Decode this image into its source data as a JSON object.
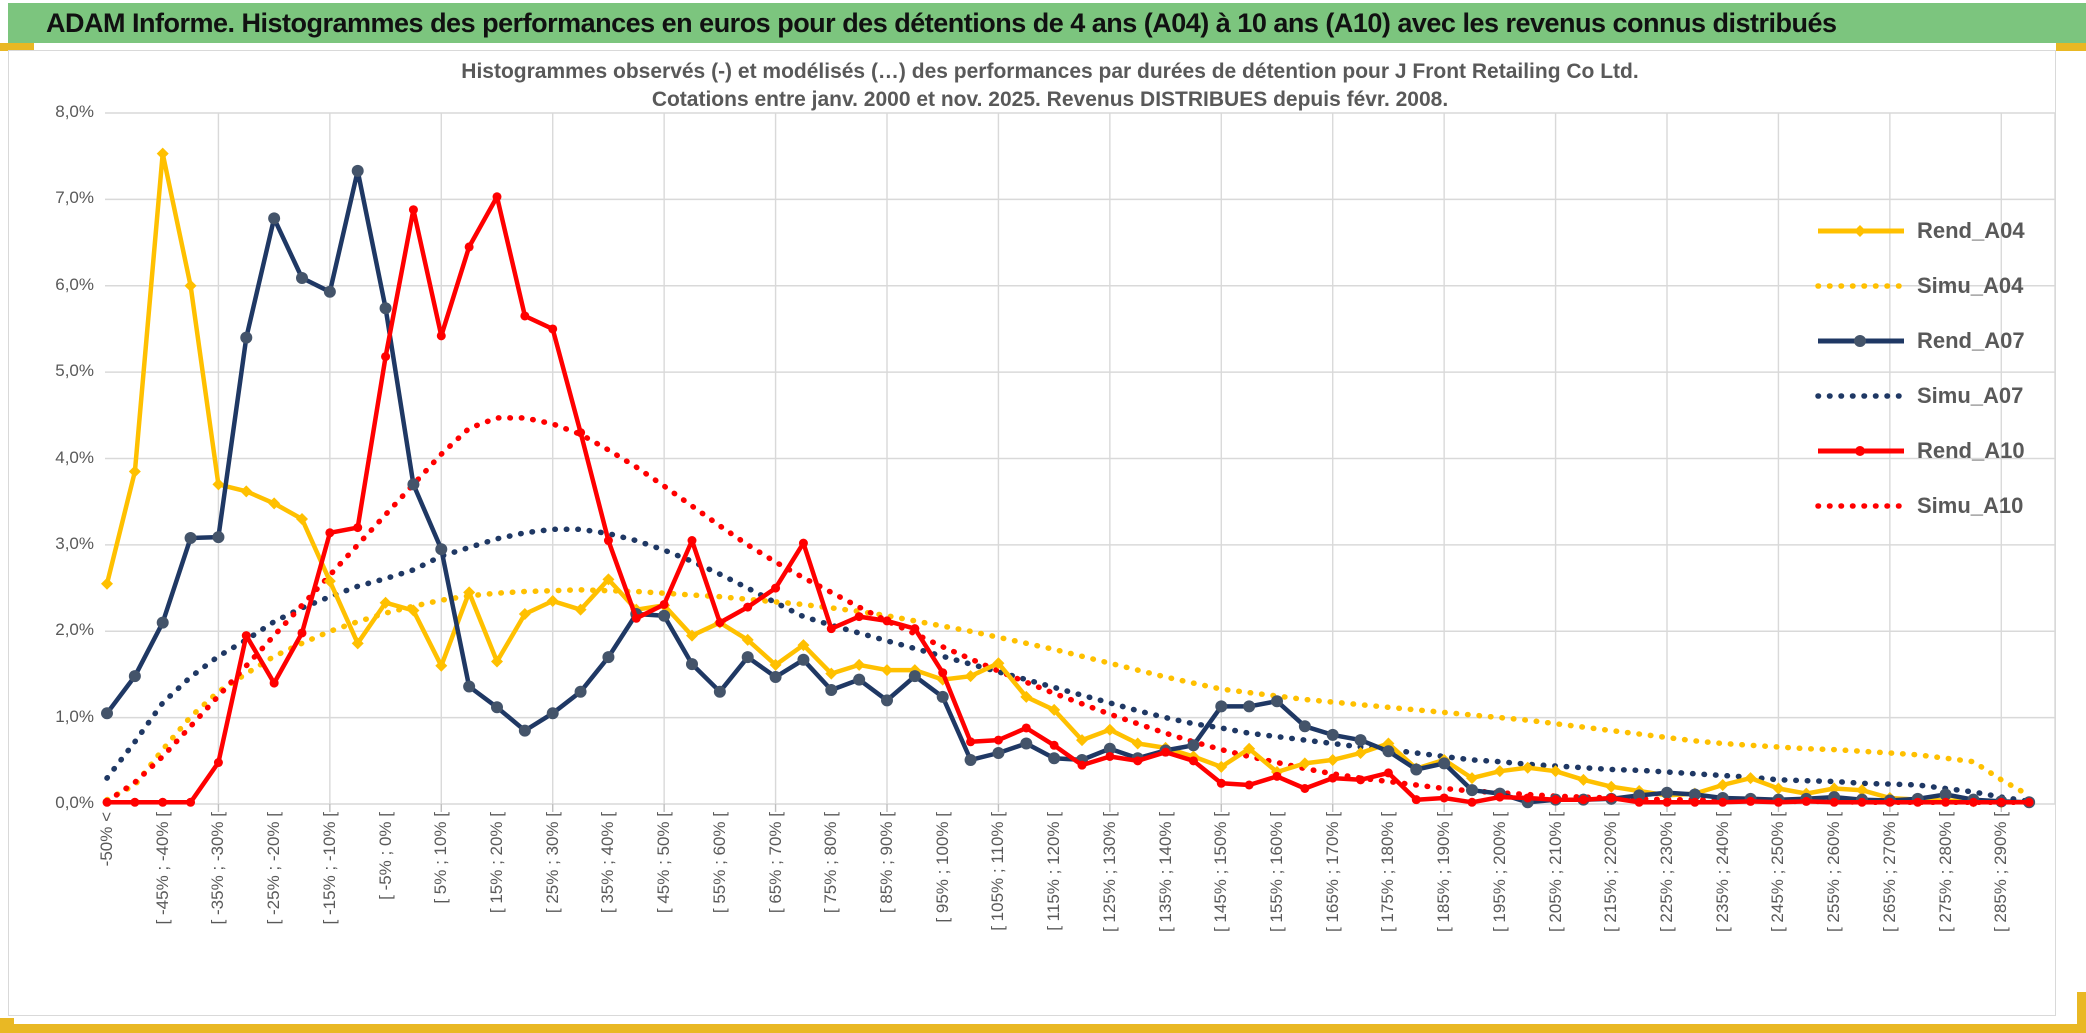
{
  "banner": {
    "title": "ADAM Informe. Histogrammes des performances en euros pour des détentions de 4 ans (A04) à 10 ans (A10) avec les revenus connus distribués",
    "background_color": "#7CC57E",
    "accent_color": "#E9B824"
  },
  "chart_data": {
    "type": "line",
    "title": "Histogrammes observés (-) et modélisés (…) des performances par durées de détention pour J Front Retailing Co Ltd.",
    "subtitle": "Cotations entre janv. 2000 et nov. 2025. Revenus DISTRIBUES depuis févr. 2008.",
    "ylim": [
      0,
      8
    ],
    "grid": true,
    "legend_position": "right",
    "y_tick_labels": [
      "0,0%",
      "1,0%",
      "2,0%",
      "3,0%",
      "4,0%",
      "5,0%",
      "6,0%",
      "7,0%",
      "8,0%"
    ],
    "x_tick_labels": [
      "-50% <",
      "[ -45% ; -40% [",
      "[ -35% ; -30% [",
      "[ -25% ; -20% [",
      "[ -15% ; -10% [",
      "[ -5% ; 0% [",
      "[ 5% ; 10% [",
      "[ 15% ; 20% [",
      "[ 25% ; 30% [",
      "[ 35% ; 40% [",
      "[ 45% ; 50% [",
      "[ 55% ; 60% [",
      "[ 65% ; 70% [",
      "[ 75% ; 80% [",
      "[ 85% ; 90% [",
      "[ 95% ; 100% [",
      "[ 105% ; 110% [",
      "[ 115% ; 120% [",
      "[ 125% ; 130% [",
      "[ 135% ; 140% [",
      "[ 145% ; 150% [",
      "[ 155% ; 160% [",
      "[ 165% ; 170% [",
      "[ 175% ; 180% [",
      "[ 185% ; 190% [",
      "[ 195% ; 200% [",
      "[ 205% ; 210% [",
      "[ 215% ; 220% [",
      "[ 225% ; 230% [",
      "[ 235% ; 240% [",
      "[ 245% ; 250% [",
      "[ 255% ; 260% [",
      "[ 265% ; 270% [",
      "[ 275% ; 280% [",
      "[ 285% ; 290% ["
    ],
    "x_labels_every_n_categories": 2,
    "n_categories": 70,
    "series": [
      {
        "name": "Simu_A04",
        "color": "#FFC000",
        "style": "dotted",
        "marker": "none",
        "values": [
          0.05,
          0.22,
          0.63,
          1.01,
          1.3,
          1.51,
          1.71,
          1.86,
          2.0,
          2.11,
          2.21,
          2.29,
          2.36,
          2.41,
          2.44,
          2.46,
          2.47,
          2.48,
          2.47,
          2.46,
          2.44,
          2.42,
          2.4,
          2.37,
          2.34,
          2.31,
          2.27,
          2.23,
          2.18,
          2.12,
          2.06,
          2.0,
          1.93,
          1.86,
          1.79,
          1.71,
          1.63,
          1.55,
          1.47,
          1.4,
          1.33,
          1.29,
          1.25,
          1.21,
          1.18,
          1.15,
          1.12,
          1.09,
          1.06,
          1.03,
          1.0,
          0.97,
          0.93,
          0.89,
          0.85,
          0.81,
          0.77,
          0.73,
          0.7,
          0.68,
          0.66,
          0.64,
          0.63,
          0.61,
          0.59,
          0.57,
          0.53,
          0.49,
          0.28,
          0.1
        ]
      },
      {
        "name": "Simu_A07",
        "color": "#1F3864",
        "style": "dotted",
        "marker": "none",
        "values": [
          0.3,
          0.72,
          1.17,
          1.47,
          1.71,
          1.9,
          2.11,
          2.27,
          2.4,
          2.52,
          2.61,
          2.71,
          2.87,
          2.97,
          3.07,
          3.14,
          3.18,
          3.18,
          3.13,
          3.05,
          2.94,
          2.81,
          2.66,
          2.5,
          2.33,
          2.17,
          2.07,
          1.98,
          1.89,
          1.8,
          1.71,
          1.62,
          1.53,
          1.44,
          1.35,
          1.26,
          1.17,
          1.08,
          1.0,
          0.93,
          0.88,
          0.82,
          0.78,
          0.74,
          0.7,
          0.66,
          0.63,
          0.59,
          0.55,
          0.51,
          0.49,
          0.46,
          0.44,
          0.42,
          0.4,
          0.39,
          0.37,
          0.35,
          0.33,
          0.31,
          0.28,
          0.27,
          0.26,
          0.24,
          0.23,
          0.22,
          0.18,
          0.14,
          0.08,
          0.03
        ]
      },
      {
        "name": "Simu_A10",
        "color": "#FF0000",
        "style": "dotted",
        "marker": "none",
        "values": [
          0.03,
          0.25,
          0.55,
          0.9,
          1.25,
          1.6,
          1.95,
          2.3,
          2.65,
          3.0,
          3.35,
          3.7,
          4.05,
          4.35,
          4.47,
          4.47,
          4.4,
          4.28,
          4.1,
          3.9,
          3.68,
          3.45,
          3.22,
          3.0,
          2.8,
          2.62,
          2.45,
          2.28,
          2.12,
          1.97,
          1.82,
          1.68,
          1.54,
          1.41,
          1.28,
          1.16,
          1.04,
          0.93,
          0.82,
          0.72,
          0.63,
          0.55,
          0.48,
          0.41,
          0.35,
          0.3,
          0.26,
          0.22,
          0.18,
          0.15,
          0.13,
          0.11,
          0.09,
          0.08,
          0.07,
          0.06,
          0.05,
          0.05,
          0.04,
          0.04,
          0.03,
          0.03,
          0.03,
          0.02,
          0.02,
          0.02,
          0.02,
          0.02,
          0.02,
          0.02
        ]
      },
      {
        "name": "Rend_A04",
        "color": "#FFC000",
        "style": "solid",
        "marker": "diamond",
        "marker_color": "#FFC000",
        "values": [
          2.55,
          3.85,
          7.53,
          6.0,
          3.7,
          3.62,
          3.48,
          3.3,
          2.58,
          1.86,
          2.33,
          2.24,
          1.6,
          2.45,
          1.65,
          2.2,
          2.35,
          2.25,
          2.6,
          2.25,
          2.3,
          1.95,
          2.1,
          1.9,
          1.61,
          1.84,
          1.51,
          1.61,
          1.55,
          1.55,
          1.44,
          1.48,
          1.63,
          1.24,
          1.09,
          0.74,
          0.86,
          0.7,
          0.65,
          0.55,
          0.43,
          0.64,
          0.37,
          0.47,
          0.51,
          0.59,
          0.7,
          0.41,
          0.51,
          0.3,
          0.38,
          0.42,
          0.38,
          0.28,
          0.2,
          0.15,
          0.1,
          0.12,
          0.22,
          0.3,
          0.18,
          0.12,
          0.18,
          0.16,
          0.07,
          0.05,
          0.04,
          0.03,
          0.02,
          0.02
        ]
      },
      {
        "name": "Rend_A07",
        "color": "#1F3864",
        "style": "solid",
        "marker": "circle",
        "marker_color": "#44546A",
        "values": [
          1.05,
          1.48,
          2.1,
          3.08,
          3.09,
          5.4,
          6.78,
          6.09,
          5.93,
          7.33,
          5.74,
          3.7,
          2.95,
          1.36,
          1.12,
          0.85,
          1.05,
          1.3,
          1.7,
          2.2,
          2.18,
          1.62,
          1.3,
          1.7,
          1.47,
          1.67,
          1.32,
          1.44,
          1.2,
          1.48,
          1.24,
          0.51,
          0.59,
          0.7,
          0.53,
          0.51,
          0.64,
          0.53,
          0.62,
          0.68,
          1.13,
          1.13,
          1.19,
          0.9,
          0.8,
          0.74,
          0.61,
          0.4,
          0.47,
          0.16,
          0.12,
          0.02,
          0.05,
          0.05,
          0.06,
          0.1,
          0.13,
          0.11,
          0.07,
          0.06,
          0.05,
          0.06,
          0.08,
          0.05,
          0.04,
          0.06,
          0.11,
          0.05,
          0.03,
          0.02
        ]
      },
      {
        "name": "Rend_A10",
        "color": "#FF0000",
        "style": "solid",
        "marker": "circle",
        "marker_color": "#FF0000",
        "values": [
          0.02,
          0.02,
          0.02,
          0.02,
          0.48,
          1.95,
          1.4,
          1.98,
          3.14,
          3.2,
          5.18,
          6.88,
          5.42,
          6.45,
          7.03,
          5.65,
          5.5,
          4.3,
          3.05,
          2.15,
          2.31,
          3.05,
          2.1,
          2.28,
          2.5,
          3.02,
          2.03,
          2.17,
          2.12,
          2.03,
          1.52,
          0.72,
          0.74,
          0.88,
          0.68,
          0.45,
          0.55,
          0.5,
          0.6,
          0.5,
          0.24,
          0.22,
          0.32,
          0.18,
          0.3,
          0.28,
          0.36,
          0.05,
          0.07,
          0.02,
          0.08,
          0.07,
          0.05,
          0.05,
          0.07,
          0.02,
          0.02,
          0.02,
          0.02,
          0.03,
          0.02,
          0.03,
          0.02,
          0.02,
          0.02,
          0.02,
          0.02,
          0.02,
          0.02,
          0.02
        ]
      }
    ],
    "legend_order": [
      "Rend_A04",
      "Simu_A04",
      "Rend_A07",
      "Simu_A07",
      "Rend_A10",
      "Simu_A10"
    ]
  },
  "colors": {
    "grid": "#D9D9D9",
    "axis_text": "#595959",
    "title_text": "#595959"
  }
}
